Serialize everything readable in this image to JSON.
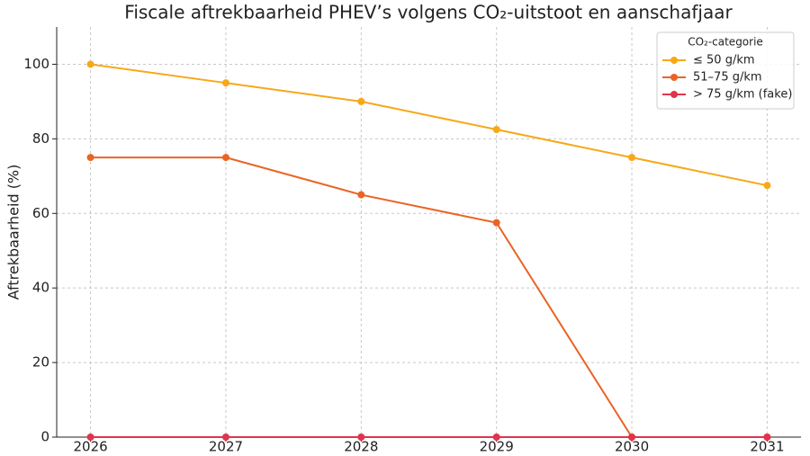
{
  "chart_data": {
    "type": "line",
    "title": "Fiscale aftrekbaarheid PHEV’s volgens CO₂-uitstoot en aanschafjaar",
    "y_label": "Aftrekbaarheid (%)",
    "x": [
      2026,
      2027,
      2028,
      2029,
      2030,
      2031
    ],
    "series": [
      {
        "name": "≤ 50 g/km",
        "color": "#f7a818",
        "values": [
          100,
          95,
          90,
          82.5,
          75,
          67.5
        ]
      },
      {
        "name": "51–75 g/km",
        "color": "#ea6424",
        "values": [
          75,
          75,
          65,
          57.5,
          0,
          0
        ]
      },
      {
        "name": "> 75 g/km (fake)",
        "color": "#e0344e",
        "values": [
          0,
          0,
          0,
          0,
          0,
          0
        ]
      }
    ],
    "legend_title": "CO₂-categorie",
    "legend": "upper right",
    "xlim": [
      2025.75,
      2031.25
    ],
    "xticks": [
      2026,
      2027,
      2028,
      2029,
      2030,
      2031
    ],
    "ylim": [
      0,
      110
    ],
    "yticks": [
      0,
      20,
      40,
      60,
      80,
      100
    ],
    "grid": true
  }
}
